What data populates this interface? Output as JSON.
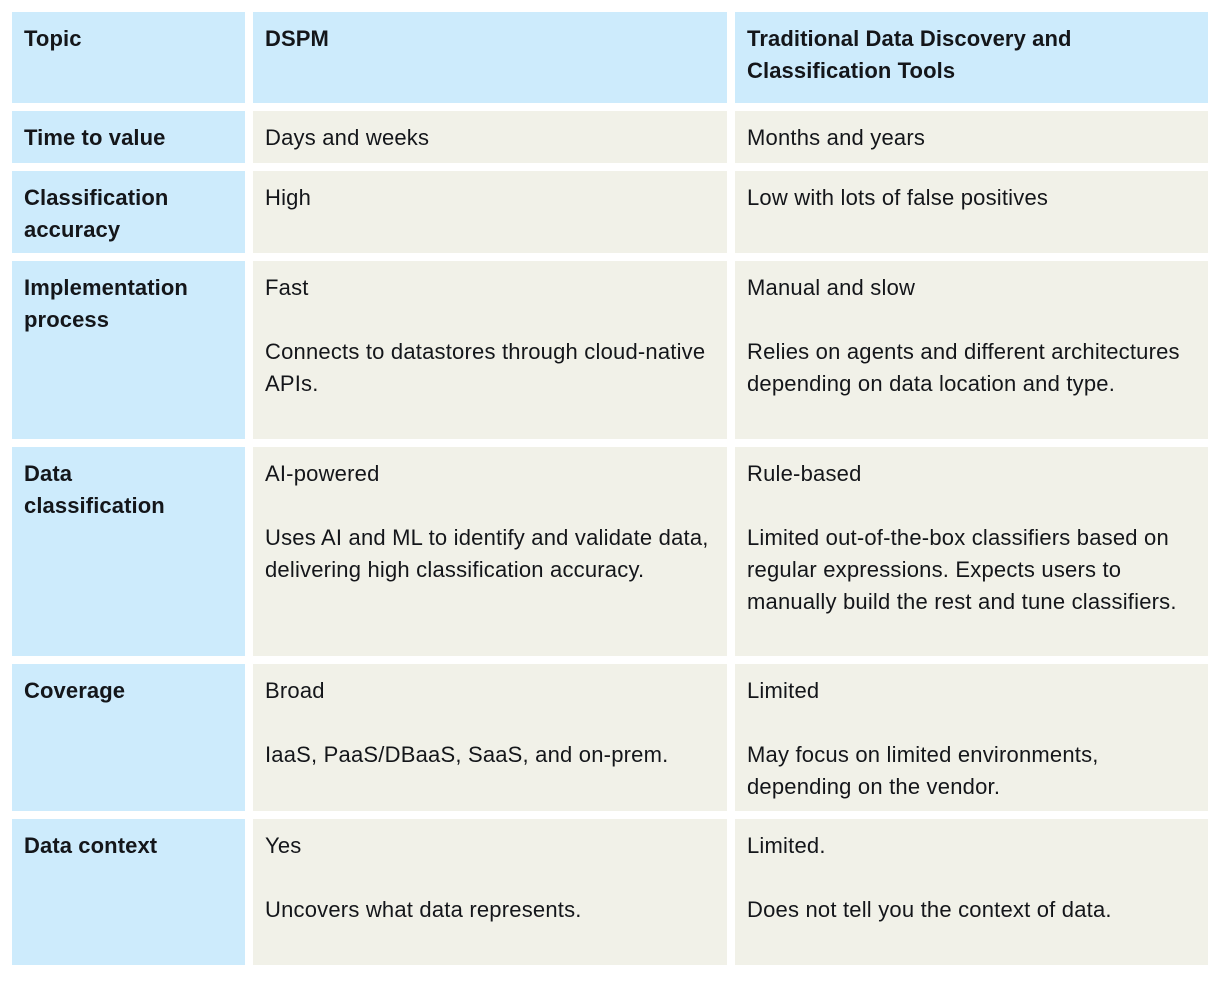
{
  "colors": {
    "page_background": "#ffffff",
    "header_cell": "#cdebfc",
    "label_cell": "#cdebfc",
    "data_cell": "#f1f1e8",
    "text": "#14161a"
  },
  "table": {
    "columns": [
      {
        "label": "Topic"
      },
      {
        "label": "DSPM"
      },
      {
        "label": "Traditional Data Discovery and Classification Tools"
      }
    ],
    "rows": [
      {
        "topic": "Time to value",
        "dspm_summary": "Days and weeks",
        "traditional_summary": "Months and years"
      },
      {
        "topic": "Classification accuracy",
        "dspm_summary": "High",
        "traditional_summary": "Low with lots of false positives"
      },
      {
        "topic": "Implementation process",
        "dspm_summary": "Fast",
        "dspm_detail": "Connects to datastores through cloud-native APIs.",
        "traditional_summary": "Manual and slow",
        "traditional_detail": "Relies on agents and different architectures depending on data location and type."
      },
      {
        "topic": "Data classification",
        "dspm_summary": "AI-powered",
        "dspm_detail": "Uses AI and ML to identify and validate data, delivering high classification accuracy.",
        "traditional_summary": "Rule-based",
        "traditional_detail": "Limited out-of-the-box classifiers based on regular expressions. Expects users to manually build the rest and tune classifiers."
      },
      {
        "topic": "Coverage",
        "dspm_summary": "Broad",
        "dspm_detail": "IaaS, PaaS/DBaaS, SaaS, and on-prem.",
        "traditional_summary": "Limited",
        "traditional_detail": "May focus on limited environments, depending on the vendor."
      },
      {
        "topic": "Data context",
        "dspm_summary": "Yes",
        "dspm_detail": "Uncovers what data represents.",
        "traditional_summary": "Limited.",
        "traditional_detail": "Does not tell you the context of data."
      }
    ]
  }
}
